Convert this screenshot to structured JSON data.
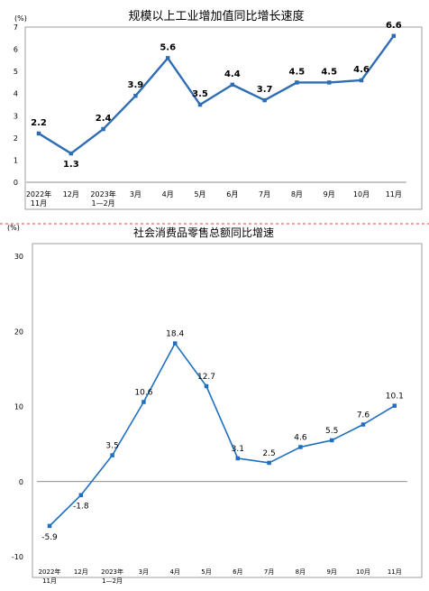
{
  "chart_data": [
    {
      "type": "line",
      "title": "规模以上工业增加值同比增长速度",
      "unit": "(%)",
      "ylim": [
        0,
        7
      ],
      "yticks": [
        0,
        1,
        2,
        3,
        4,
        5,
        6,
        7
      ],
      "categories": [
        [
          "2022年",
          "11月"
        ],
        [
          "12月"
        ],
        [
          "2023年",
          "1—2月"
        ],
        [
          "3月"
        ],
        [
          "4月"
        ],
        [
          "5月"
        ],
        [
          "6月"
        ],
        [
          "7月"
        ],
        [
          "8月"
        ],
        [
          "9月"
        ],
        [
          "10月"
        ],
        [
          "11月"
        ]
      ],
      "values": [
        2.2,
        1.3,
        2.4,
        3.9,
        5.6,
        3.5,
        4.4,
        3.7,
        4.5,
        4.5,
        4.6,
        6.6
      ],
      "labels": [
        "2.2",
        "1.3",
        "2.4",
        "3.9",
        "5.6",
        "3.5",
        "4.4",
        "3.7",
        "4.5",
        "4.5",
        "4.6",
        "6.6"
      ],
      "color": "#2e6db4",
      "grid": false
    },
    {
      "type": "line",
      "title": "社会消费品零售总额同比增速",
      "unit": "(%)",
      "ylim": [
        -10,
        30
      ],
      "yticks": [
        -10,
        0,
        10,
        20,
        30
      ],
      "categories": [
        [
          "2022年",
          "11月"
        ],
        [
          "12月"
        ],
        [
          "2023年",
          "1—2月"
        ],
        [
          "3月"
        ],
        [
          "4月"
        ],
        [
          "5月"
        ],
        [
          "6月"
        ],
        [
          "7月"
        ],
        [
          "8月"
        ],
        [
          "9月"
        ],
        [
          "10月"
        ],
        [
          "11月"
        ]
      ],
      "values": [
        -5.9,
        -1.8,
        3.5,
        10.6,
        18.4,
        12.7,
        3.1,
        2.5,
        4.6,
        5.5,
        7.6,
        10.1
      ],
      "labels": [
        "-5.9",
        "-1.8",
        "3.5",
        "10.6",
        "18.4",
        "12.7",
        "3.1",
        "2.5",
        "4.6",
        "5.5",
        "7.6",
        "10.1"
      ],
      "color": "#1f6fc0",
      "grid": false
    }
  ]
}
